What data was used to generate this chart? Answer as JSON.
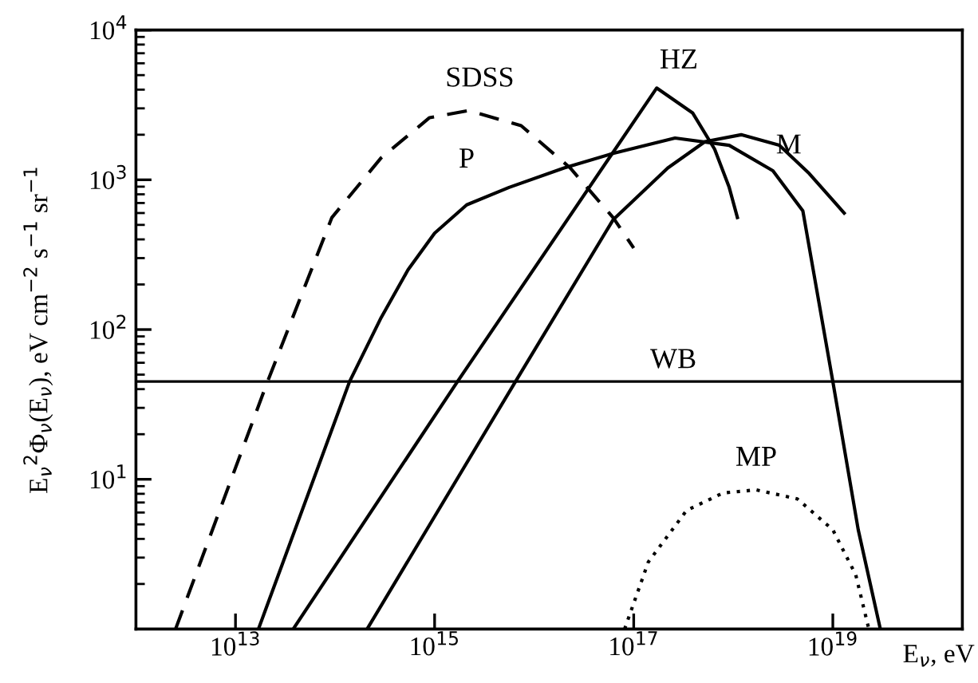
{
  "chart_data": {
    "type": "line",
    "xlabel": "E$_{ν}$, eV",
    "ylabel": "E$_{ν}$$^{2}$Φ$_{ν}$(E$_{ν}$), eV cm$^{−2}$ s$^{−1}$ sr$^{−1}$",
    "log": "xy",
    "grid": false,
    "legend": false,
    "marker": "none",
    "xlim": [
      1000000000000.0,
      2e+20
    ],
    "ylim": [
      1,
      10000
    ],
    "xticks": [
      {
        "value": 10000000000000.0,
        "label": "10$^{13}$"
      },
      {
        "value": 1000000000000000.0,
        "label": "10$^{15}$"
      },
      {
        "value": 1e+17,
        "label": "10$^{17}$"
      },
      {
        "value": 1e+19,
        "label": "10$^{19}$"
      }
    ],
    "yticks": [
      {
        "value": 10,
        "label": "10$^{1}$"
      },
      {
        "value": 100,
        "label": "10$^{2}$"
      },
      {
        "value": 1000,
        "label": "10$^{3}$"
      },
      {
        "value": 10000,
        "label": "10$^{4}$"
      }
    ],
    "series": [
      {
        "name": "SDSS",
        "color": "#000000",
        "line_style": "dashed",
        "x": [
          2500000000000.0,
          21000000000000.0,
          93000000000000.0,
          290000000000000.0,
          890000000000000.0,
          2200000000000000.0,
          7400000000000000.0,
          2.3e+16,
          6.2e+16,
          1e+17
        ],
        "values": [
          1,
          45,
          560,
          1400,
          2600,
          2900,
          2300,
          1200,
          560,
          350
        ]
      },
      {
        "name": "P",
        "color": "#000000",
        "line_style": "solid",
        "x": [
          17000000000000.0,
          140000000000000.0,
          290000000000000.0,
          540000000000000.0,
          1000000000000000.0,
          2100000000000000.0,
          5600000000000000.0,
          2e+16,
          6.2e+16,
          2.6e+17,
          9.1e+17,
          2.5e+18,
          5e+18,
          1e+19,
          1.8e+19,
          3e+19
        ],
        "values": [
          1,
          45,
          120,
          250,
          440,
          680,
          890,
          1200,
          1500,
          1900,
          1700,
          1150,
          620,
          45,
          4.6,
          1
        ]
      },
      {
        "name": "HZ",
        "color": "#000000",
        "line_style": "solid",
        "x": [
          38000000000000.0,
          1700000000000000.0,
          1.7e+17,
          3.9e+17,
          6.5e+17,
          9.1e+17,
          1.1e+18
        ],
        "values": [
          1,
          45,
          4100,
          2800,
          1600,
          890,
          560
        ]
      },
      {
        "name": "M",
        "color": "#000000",
        "line_style": "solid",
        "x": [
          210000000000000.0,
          6500000000000000.0,
          6.2e+16,
          2.2e+17,
          5.2e+17,
          1.2e+18,
          2.9e+18,
          5.8e+18,
          1.3e+19
        ],
        "values": [
          1,
          45,
          540,
          1200,
          1800,
          2000,
          1700,
          1100,
          600
        ]
      },
      {
        "name": "MP",
        "color": "#000000",
        "line_style": "dotted",
        "x": [
          8.1e+16,
          1.4e+17,
          3.4e+17,
          7.9e+17,
          1.7e+18,
          4.4e+18,
          1e+19,
          1.7e+19,
          2.3e+19
        ],
        "values": [
          1,
          2.8,
          6.2,
          8.1,
          8.5,
          7.4,
          4.6,
          2.3,
          1
        ]
      }
    ],
    "ref_lines": [
      {
        "axis": "y",
        "value": 45,
        "label": "WB",
        "color": "#000000"
      }
    ]
  }
}
